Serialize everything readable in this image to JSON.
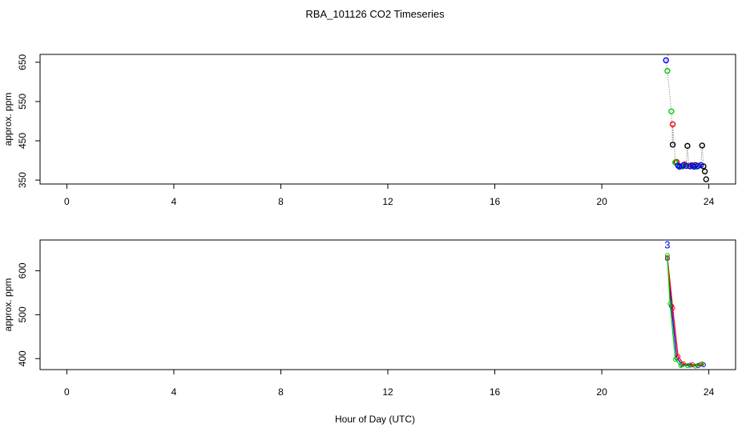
{
  "chart_data": [
    {
      "type": "scatter",
      "title": "RBA_101126  CO2 Timeseries",
      "xlabel": "",
      "ylabel": "approx. ppm",
      "xlim": [
        -1,
        25
      ],
      "ylim": [
        340,
        670
      ],
      "xticks": [
        0,
        4,
        8,
        12,
        16,
        20,
        24
      ],
      "yticks": [
        350,
        450,
        550,
        650
      ],
      "xtick_labels": [
        "0",
        "4",
        "8",
        "12",
        "16",
        "20",
        "24"
      ],
      "ytick_labels": [
        "350",
        "450",
        "550",
        "650"
      ],
      "series_colors": [
        "#000000",
        "#ff0000",
        "#00cc00",
        "#0000ff"
      ],
      "series": [
        {
          "color": "#000000",
          "x": [
            22.65,
            22.75,
            23.0,
            23.2,
            23.5,
            23.75,
            23.8,
            23.85,
            23.9
          ],
          "y": [
            440,
            395,
            385,
            437,
            388,
            438,
            385,
            372,
            352
          ]
        },
        {
          "color": "#ff0000",
          "x": [
            22.65,
            22.8,
            23.1,
            23.35,
            23.6
          ],
          "y": [
            492,
            396,
            390,
            388,
            386
          ]
        },
        {
          "color": "#00cc00",
          "x": [
            22.45,
            22.6,
            22.75,
            22.95,
            23.25,
            23.55
          ],
          "y": [
            628,
            525,
            395,
            385,
            386,
            384
          ]
        },
        {
          "color": "#0000ff",
          "x": [
            22.4,
            22.85,
            22.9,
            23.05,
            23.15,
            23.3,
            23.4,
            23.45,
            23.6,
            23.7
          ],
          "y": [
            655,
            387,
            384,
            388,
            386,
            385,
            387,
            384,
            386,
            388
          ]
        }
      ]
    },
    {
      "type": "line",
      "title": "",
      "xlabel": "Hour of Day (UTC)",
      "ylabel": "approx. ppm",
      "xlim": [
        -1,
        25
      ],
      "ylim": [
        375,
        670
      ],
      "xticks": [
        0,
        4,
        8,
        12,
        16,
        20,
        24
      ],
      "yticks": [
        400,
        500,
        600
      ],
      "xtick_labels": [
        "0",
        "4",
        "8",
        "12",
        "16",
        "20",
        "24"
      ],
      "ytick_labels": [
        "400",
        "500",
        "600"
      ],
      "series_colors": [
        "#0000ff",
        "#ff0000",
        "#00cc00"
      ],
      "series": [
        {
          "color": "#0000ff",
          "x": [
            22.45,
            22.6,
            22.8,
            23.0,
            23.3,
            23.6,
            23.8
          ],
          "y": [
            628,
            520,
            402,
            386,
            385,
            384,
            386
          ]
        },
        {
          "color": "#ff0000",
          "x": [
            22.45,
            22.65,
            22.85,
            23.05,
            23.4,
            23.7
          ],
          "y": [
            630,
            515,
            405,
            388,
            386,
            387
          ]
        },
        {
          "color": "#00cc00",
          "x": [
            22.45,
            22.55,
            22.75,
            22.95,
            23.2,
            23.5,
            23.75
          ],
          "y": [
            635,
            525,
            398,
            384,
            384,
            383,
            388
          ]
        }
      ],
      "labels": [
        {
          "text": "3",
          "x": 22.45,
          "y": 660,
          "color": "#0000ff"
        }
      ]
    }
  ]
}
